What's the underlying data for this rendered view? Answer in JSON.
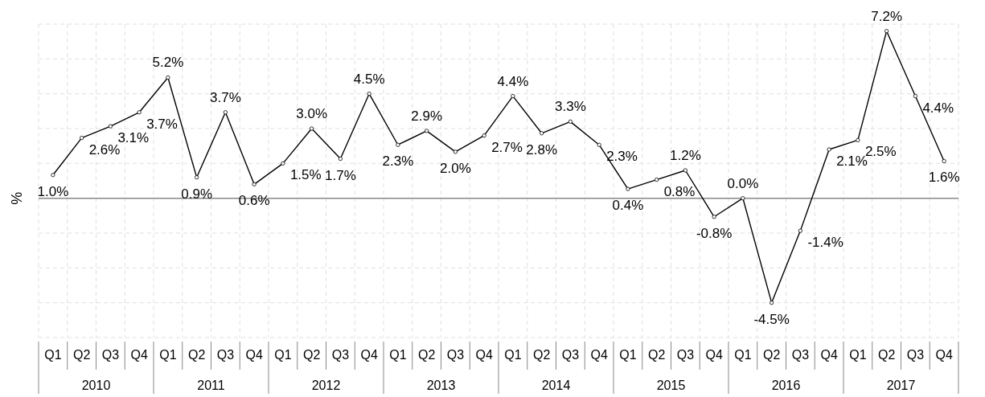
{
  "chart_data": {
    "type": "line",
    "ylabel": "%",
    "categories": [
      "Q1",
      "Q2",
      "Q3",
      "Q4",
      "Q1",
      "Q2",
      "Q3",
      "Q4",
      "Q1",
      "Q2",
      "Q3",
      "Q4",
      "Q1",
      "Q2",
      "Q3",
      "Q4",
      "Q1",
      "Q2",
      "Q3",
      "Q4",
      "Q1",
      "Q2",
      "Q3",
      "Q4",
      "Q1",
      "Q2",
      "Q3",
      "Q4",
      "Q1",
      "Q2",
      "Q3",
      "Q4"
    ],
    "annotations": [
      "2010",
      "2011",
      "2012",
      "2013",
      "2014",
      "2015",
      "2016",
      "2017"
    ],
    "series": [
      {
        "color": "#000000",
        "values": [
          1.0,
          2.6,
          3.1,
          3.7,
          5.2,
          0.9,
          3.7,
          0.6,
          1.5,
          3.0,
          1.7,
          4.5,
          2.3,
          2.9,
          2.0,
          2.7,
          4.4,
          2.8,
          3.3,
          2.3,
          0.4,
          0.8,
          1.2,
          -0.8,
          0.0,
          -4.5,
          -1.4,
          2.1,
          2.5,
          7.2,
          4.4,
          1.6
        ],
        "value_labels": [
          "1.0%",
          "2.6%",
          "3.1%",
          "3.7%",
          "5.2%",
          "0.9%",
          "3.7%",
          "0.6%",
          "1.5%",
          "3.0%",
          "1.7%",
          "4.5%",
          "2.3%",
          "2.9%",
          "2.0%",
          "2.7%",
          "4.4%",
          "2.8%",
          "3.3%",
          "2.3%",
          "0.4%",
          "0.8%",
          "1.2%",
          "-0.8%",
          "0.0%",
          "-4.5%",
          "-1.4%",
          "2.1%",
          "2.5%",
          "7.2%",
          "4.4%",
          "1.6%"
        ]
      }
    ],
    "ylim": [
      -6,
      7.5
    ],
    "yticks": [
      {
        "value": -6,
        "label": null
      },
      {
        "value": -4.5,
        "label": null
      },
      {
        "value": -3,
        "label": null
      },
      {
        "value": -1.5,
        "label": null
      },
      {
        "value": 0,
        "label": null
      },
      {
        "value": 1.5,
        "label": null
      },
      {
        "value": 3,
        "label": null
      },
      {
        "value": 4.5,
        "label": null
      },
      {
        "value": 6,
        "label": null
      },
      {
        "value": 7.5,
        "label": null
      }
    ],
    "tick_labels": "x",
    "grid": true,
    "marker": "circle",
    "line_style": "solid"
  }
}
